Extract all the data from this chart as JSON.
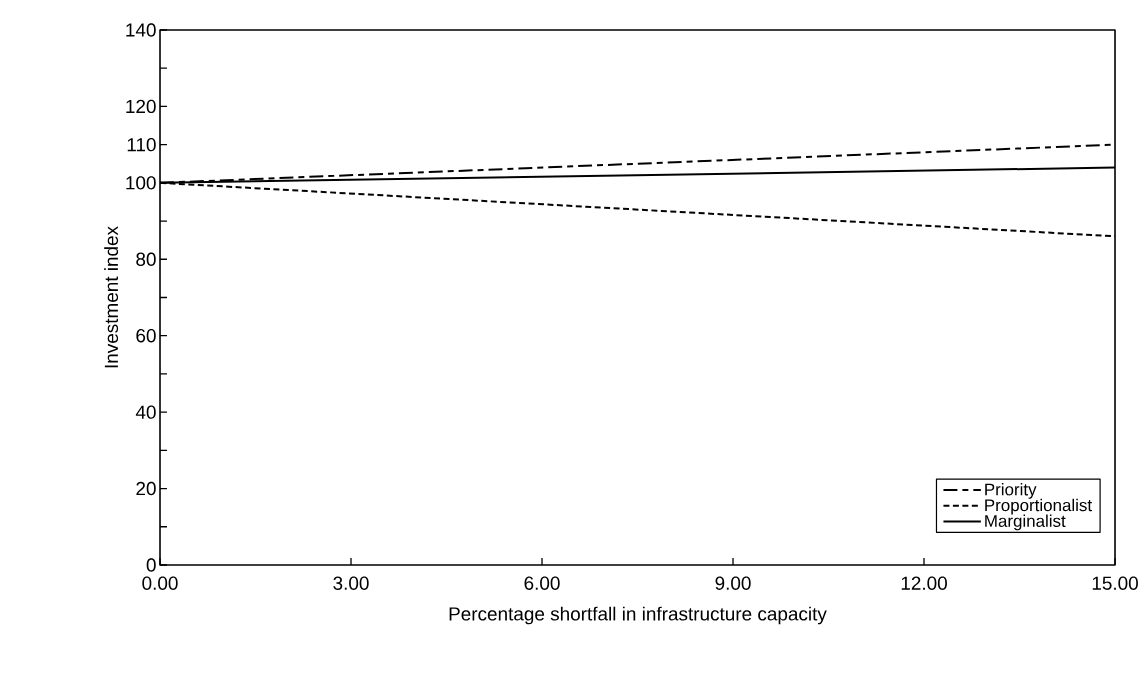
{
  "chart_data": {
    "type": "line",
    "xlabel": "Percentage shortfall in infrastructure capacity",
    "ylabel": "Investment index",
    "x": [
      0,
      15
    ],
    "series": [
      {
        "name": "Priority",
        "color": "#000000",
        "line_style": "dashed",
        "values": [
          100,
          110
        ]
      },
      {
        "name": "Proportionalist",
        "color": "#000000",
        "line_style": "dotted",
        "values": [
          100,
          86
        ]
      },
      {
        "name": "Marginalist",
        "color": "#000000",
        "line_style": "solid",
        "values": [
          100,
          104
        ]
      }
    ],
    "xlim": [
      0,
      15
    ],
    "xticks": [
      {
        "value": 0,
        "label": "0.00"
      },
      {
        "value": 3,
        "label": "3.00"
      },
      {
        "value": 6,
        "label": "6.00"
      },
      {
        "value": 9,
        "label": "9.00"
      },
      {
        "value": 12,
        "label": "12.00"
      },
      {
        "value": 15,
        "label": "15.00"
      }
    ],
    "ylim": [
      0,
      140
    ],
    "yticks": [
      0,
      {
        "value": 10,
        "label": null
      },
      20,
      {
        "value": 30,
        "label": null
      },
      40,
      {
        "value": 50,
        "label": null
      },
      60,
      {
        "value": 70,
        "label": null
      },
      80,
      {
        "value": 90,
        "label": null
      },
      100,
      110,
      120,
      {
        "value": 130,
        "label": null
      },
      140
    ],
    "grid": false,
    "legend": "bottom right",
    "marker": "none"
  }
}
